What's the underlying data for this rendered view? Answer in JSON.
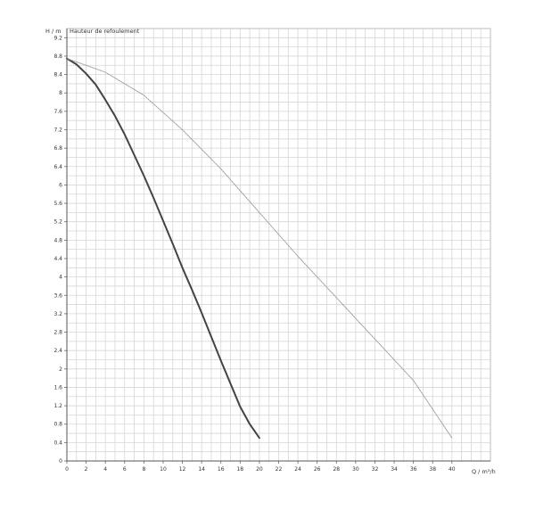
{
  "chart_data": {
    "type": "line",
    "title": "Hauteur de refoulement",
    "ylabel": "H / m",
    "xlabel": "Q / m³/h",
    "xlim": [
      0,
      44
    ],
    "ylim": [
      0,
      9.4
    ],
    "x_ticks": [
      "0",
      "2",
      "4",
      "6",
      "8",
      "10",
      "12",
      "14",
      "16",
      "18",
      "20",
      "22",
      "24",
      "26",
      "28",
      "30",
      "32",
      "34",
      "36",
      "38",
      "40"
    ],
    "x_tick_values": [
      0,
      2,
      4,
      6,
      8,
      10,
      12,
      14,
      16,
      18,
      20,
      22,
      24,
      26,
      28,
      30,
      32,
      34,
      36,
      38,
      40
    ],
    "y_ticks": [
      "0",
      "0.4",
      "0.8",
      "1.2",
      "1.6",
      "2",
      "2.4",
      "2.8",
      "3.2",
      "3.6",
      "4",
      "4.4",
      "4.8",
      "5.2",
      "5.6",
      "6",
      "6.4",
      "6.8",
      "7.2",
      "7.6",
      "8",
      "8.4",
      "8.8",
      "9.2"
    ],
    "y_tick_values": [
      0,
      0.4,
      0.8,
      1.2,
      1.6,
      2,
      2.4,
      2.8,
      3.2,
      3.6,
      4,
      4.4,
      4.8,
      5.2,
      5.6,
      6,
      6.4,
      6.8,
      7.2,
      7.6,
      8,
      8.4,
      8.8,
      9.2
    ],
    "grid": true,
    "series": [
      {
        "color": "#444444",
        "style": "thick",
        "x": [
          0,
          1,
          2,
          3,
          4,
          5,
          6,
          7,
          8,
          9,
          10,
          11,
          12,
          13,
          14,
          15,
          16,
          17,
          18,
          19,
          20
        ],
        "y": [
          8.75,
          8.62,
          8.42,
          8.18,
          7.85,
          7.5,
          7.1,
          6.65,
          6.2,
          5.72,
          5.22,
          4.72,
          4.2,
          3.72,
          3.22,
          2.7,
          2.18,
          1.68,
          1.18,
          0.8,
          0.5
        ]
      },
      {
        "color": "#999999",
        "style": "thin",
        "x": [
          0,
          4,
          8,
          12,
          16,
          20,
          24,
          28,
          32,
          36,
          40
        ],
        "y": [
          8.75,
          8.45,
          7.95,
          7.2,
          6.35,
          5.4,
          4.45,
          3.55,
          2.65,
          1.75,
          0.5
        ]
      }
    ]
  }
}
